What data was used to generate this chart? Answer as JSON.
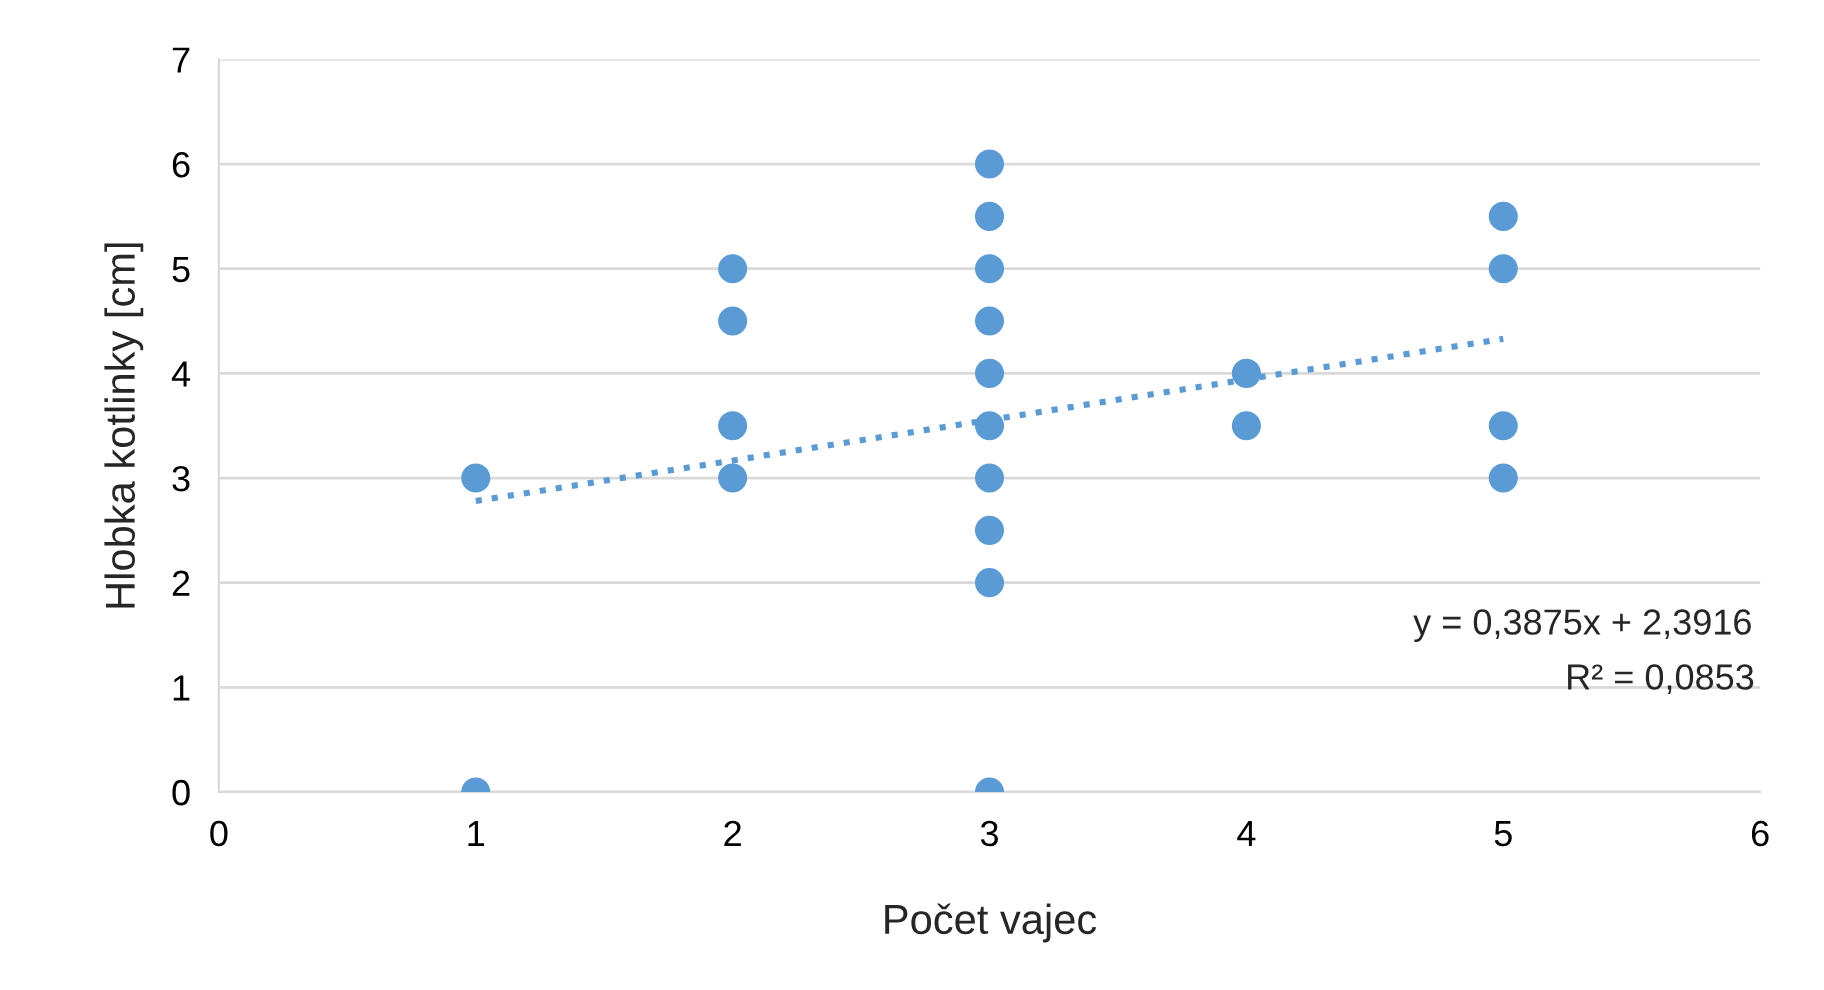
{
  "chart_data": {
    "type": "scatter",
    "xlabel": "Počet vajec",
    "ylabel": "Hlobka kotlinky [cm]",
    "xlim": [
      0,
      6
    ],
    "xticks": [
      0,
      1,
      2,
      3,
      4,
      5,
      6
    ],
    "ylim": [
      0,
      7
    ],
    "yticks": [
      0,
      1,
      2,
      3,
      4,
      5,
      6,
      7
    ],
    "grid": "y",
    "marker": "circle",
    "series": [
      {
        "color": "#5b9bd5",
        "x": [
          1,
          1,
          2,
          2,
          2,
          2,
          3,
          3,
          3,
          3,
          3,
          3,
          3,
          3,
          3,
          3,
          4,
          4,
          5,
          5,
          5,
          5
        ],
        "values": [
          3,
          0,
          5,
          4.5,
          3.5,
          3,
          6,
          5.5,
          5,
          4.5,
          4,
          3.5,
          3,
          2.5,
          2,
          0,
          4,
          3.5,
          5.5,
          5,
          3.5,
          3
        ]
      },
      {
        "type": "line",
        "color": "#5b9bd5",
        "marker": "none",
        "line_style": "dotted",
        "x": [
          1,
          5
        ],
        "values": [
          2.78,
          4.33
        ]
      }
    ],
    "annotations": [
      "y = 0,3875x + 2,3916",
      "R² = 0,0853"
    ]
  }
}
